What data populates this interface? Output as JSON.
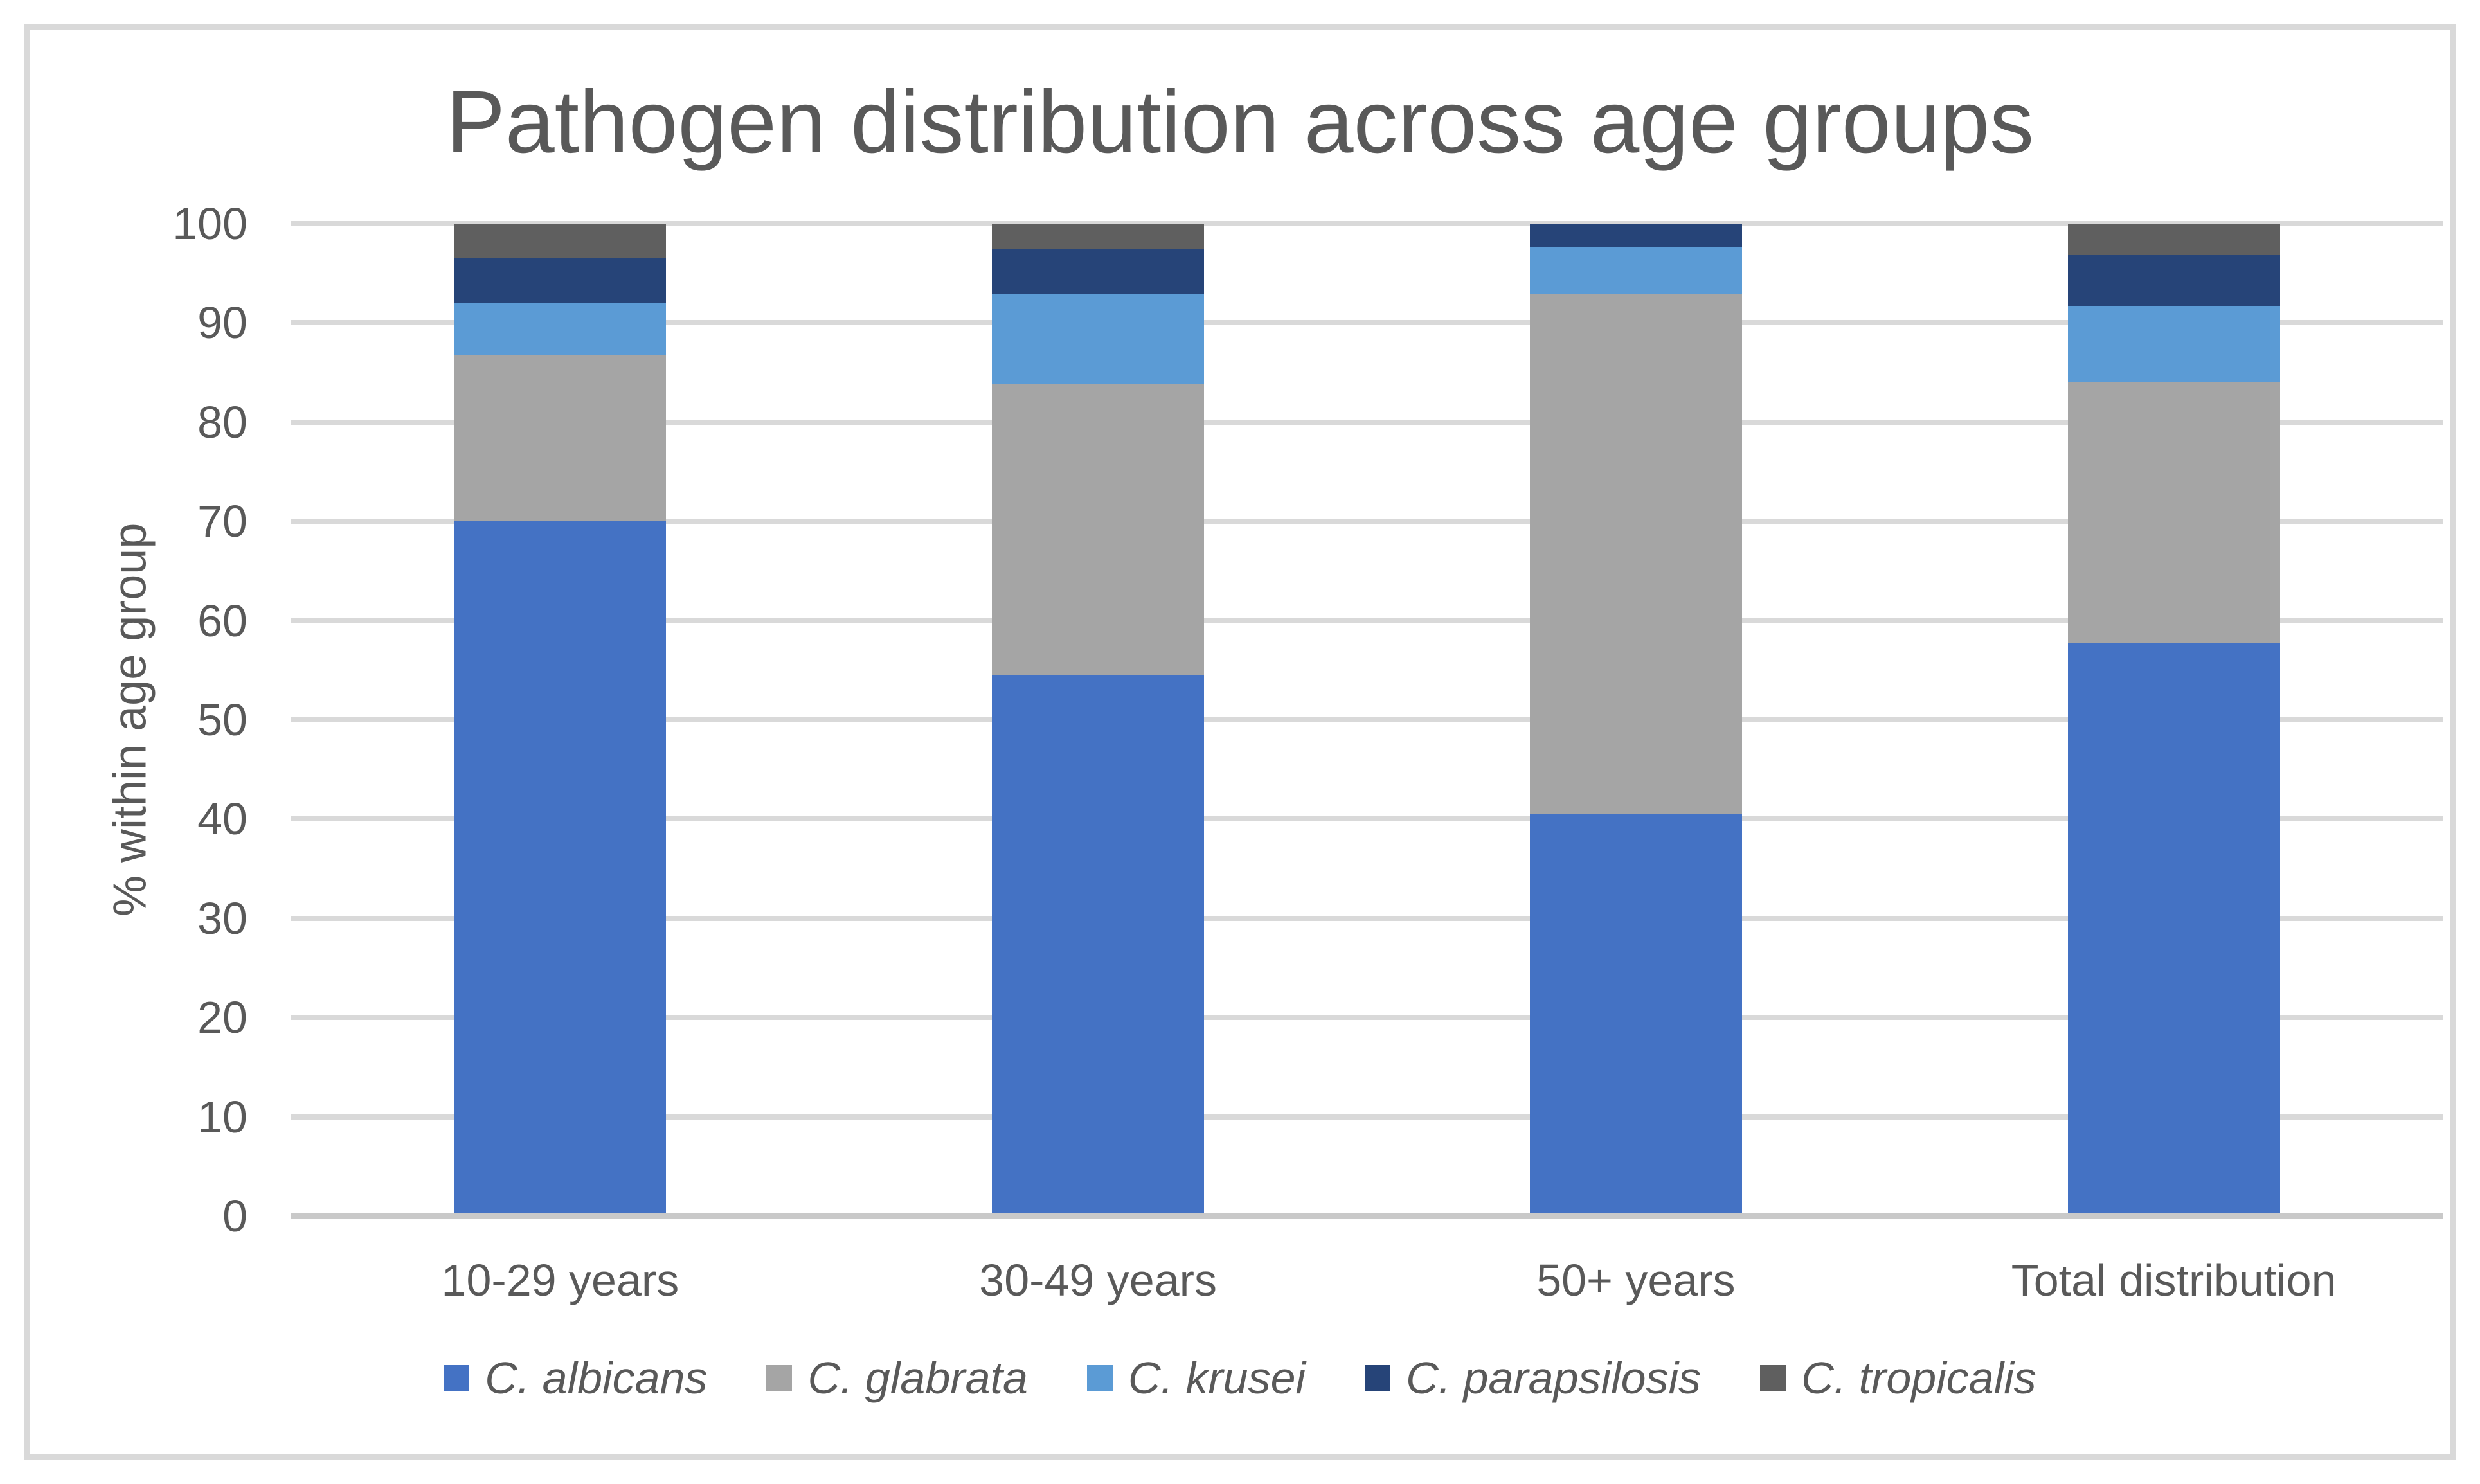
{
  "chart": {
    "title": "Pathogen distribution across age groups",
    "y_axis_title": "% within age group"
  },
  "chart_data": {
    "type": "bar",
    "subtype": "100%-stacked-column",
    "title": "Pathogen distribution across age groups",
    "xlabel": "",
    "ylabel": "% within age group",
    "ylim": [
      0,
      100
    ],
    "yticks": [
      0,
      10,
      20,
      30,
      40,
      50,
      60,
      70,
      80,
      90,
      100
    ],
    "grid": true,
    "legend_position": "bottom",
    "categories": [
      "10-29 years",
      "30-49 years",
      "50+ years",
      "Total distribution"
    ],
    "series": [
      {
        "name": "C. albicans",
        "color": "#4472C4",
        "values": [
          70.0,
          54.5,
          40.5,
          57.8
        ]
      },
      {
        "name": "C. glabrata",
        "color": "#A5A5A5",
        "values": [
          16.8,
          29.3,
          52.4,
          26.3
        ]
      },
      {
        "name": "C. krusei",
        "color": "#5B9BD5",
        "values": [
          5.2,
          9.1,
          4.7,
          7.6
        ]
      },
      {
        "name": "C. parapsilosis",
        "color": "#264478",
        "values": [
          4.6,
          4.6,
          2.4,
          5.1
        ]
      },
      {
        "name": "C. tropicalis",
        "color": "#5F5F5F",
        "values": [
          3.4,
          2.5,
          0,
          3.2
        ]
      }
    ]
  },
  "colors": {
    "title_text": "#595959",
    "axis_text": "#595959",
    "gridline": "#D9D9D9",
    "zero_axis_line": "#C9C9C9",
    "chart_border": "#D9D9D9",
    "background": "#FFFFFF"
  }
}
